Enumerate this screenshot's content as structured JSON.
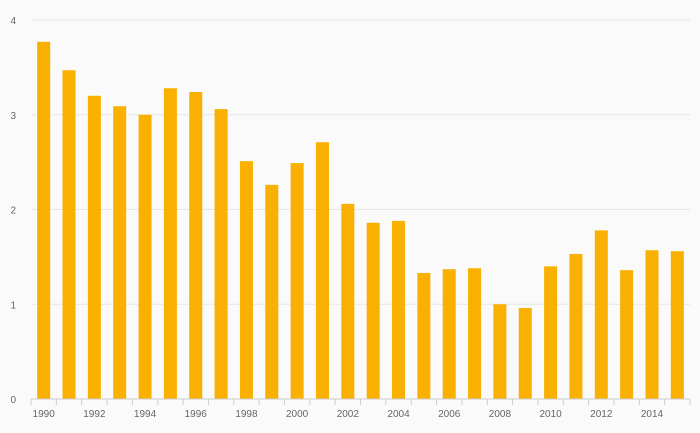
{
  "chart_data": {
    "type": "bar",
    "categories": [
      "1990",
      "1991",
      "1992",
      "1993",
      "1994",
      "1995",
      "1996",
      "1997",
      "1998",
      "1999",
      "2000",
      "2001",
      "2002",
      "2003",
      "2004",
      "2005",
      "2006",
      "2007",
      "2008",
      "2009",
      "2010",
      "2011",
      "2012",
      "2013",
      "2014",
      "2015"
    ],
    "x_tick_labels": [
      "1990",
      "1992",
      "1994",
      "1996",
      "1998",
      "2000",
      "2002",
      "2004",
      "2006",
      "2008",
      "2010",
      "2012",
      "2014"
    ],
    "series": [
      {
        "values": [
          3.77,
          3.47,
          3.2,
          3.09,
          3.0,
          3.28,
          3.24,
          3.06,
          2.51,
          2.26,
          2.49,
          2.71,
          2.06,
          1.86,
          1.88,
          1.33,
          1.37,
          1.38,
          1.0,
          0.96,
          1.4,
          1.53,
          1.78,
          1.36,
          1.57,
          1.56
        ],
        "color": "#f9b000"
      }
    ],
    "y_ticks": [
      0,
      1,
      2,
      3,
      4
    ],
    "ylim": [
      0,
      4
    ],
    "title": "",
    "xlabel": "",
    "ylabel": "",
    "grid": true,
    "legend": "none"
  }
}
